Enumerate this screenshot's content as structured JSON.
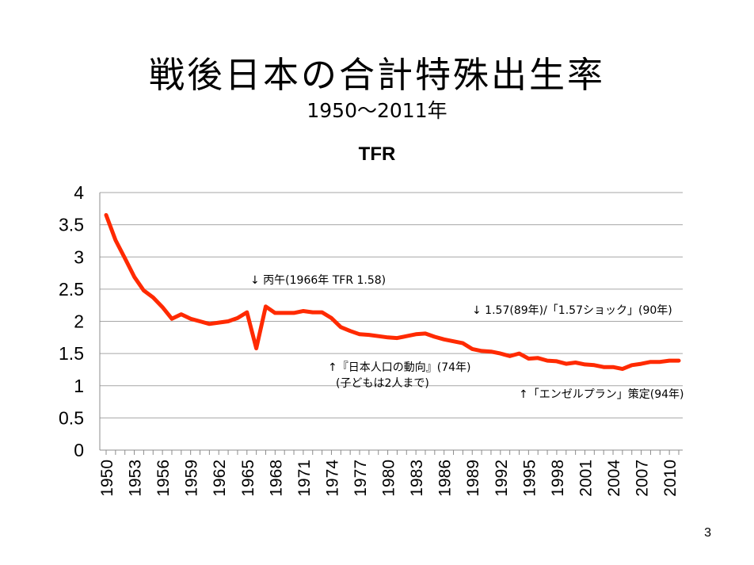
{
  "slide": {
    "title": "戦後日本の合計特殊出生率",
    "subtitle": "1950～2011年",
    "page_number": "3"
  },
  "chart_data": {
    "type": "line",
    "title": "TFR",
    "xlabel": "",
    "ylabel": "",
    "ylim": [
      0,
      4
    ],
    "yticks": [
      "0",
      "0.5",
      "1",
      "1.5",
      "2",
      "2.5",
      "3",
      "3.5",
      "4"
    ],
    "xticks": [
      "1950",
      "1953",
      "1956",
      "1959",
      "1962",
      "1965",
      "1968",
      "1971",
      "1974",
      "1977",
      "1980",
      "1983",
      "1986",
      "1989",
      "1992",
      "1995",
      "1998",
      "2001",
      "2004",
      "2007",
      "2010"
    ],
    "grid": true,
    "legend": "none",
    "series_color": "#ff2a00",
    "series": [
      {
        "name": "TFR",
        "years": [
          1950,
          1951,
          1952,
          1953,
          1954,
          1955,
          1956,
          1957,
          1958,
          1959,
          1960,
          1961,
          1962,
          1963,
          1964,
          1965,
          1966,
          1967,
          1968,
          1969,
          1970,
          1971,
          1972,
          1973,
          1974,
          1975,
          1976,
          1977,
          1978,
          1979,
          1980,
          1981,
          1982,
          1983,
          1984,
          1985,
          1986,
          1987,
          1988,
          1989,
          1990,
          1991,
          1992,
          1993,
          1994,
          1995,
          1996,
          1997,
          1998,
          1999,
          2000,
          2001,
          2002,
          2003,
          2004,
          2005,
          2006,
          2007,
          2008,
          2009,
          2010,
          2011
        ],
        "values": [
          3.65,
          3.26,
          2.98,
          2.69,
          2.48,
          2.37,
          2.22,
          2.04,
          2.11,
          2.04,
          2.0,
          1.96,
          1.98,
          2.0,
          2.05,
          2.14,
          1.58,
          2.23,
          2.13,
          2.13,
          2.13,
          2.16,
          2.14,
          2.14,
          2.05,
          1.91,
          1.85,
          1.8,
          1.79,
          1.77,
          1.75,
          1.74,
          1.77,
          1.8,
          1.81,
          1.76,
          1.72,
          1.69,
          1.66,
          1.57,
          1.54,
          1.53,
          1.5,
          1.46,
          1.5,
          1.42,
          1.43,
          1.39,
          1.38,
          1.34,
          1.36,
          1.33,
          1.32,
          1.29,
          1.29,
          1.26,
          1.32,
          1.34,
          1.37,
          1.37,
          1.39,
          1.39
        ]
      }
    ],
    "annotations": [
      {
        "id": "hinoeuma",
        "lines": [
          "↓ 丙午(1966年 TFR 1.58)"
        ]
      },
      {
        "id": "shock157",
        "lines": [
          "↓ 1.57(89年)/「1.57ショック」(90年)"
        ]
      },
      {
        "id": "doukou",
        "lines": [
          "↑『日本人口の動向』(74年)",
          "(子どもは2人まで)"
        ]
      },
      {
        "id": "angel",
        "lines": [
          "↑「エンゼルプラン」策定(94年)"
        ]
      }
    ]
  }
}
